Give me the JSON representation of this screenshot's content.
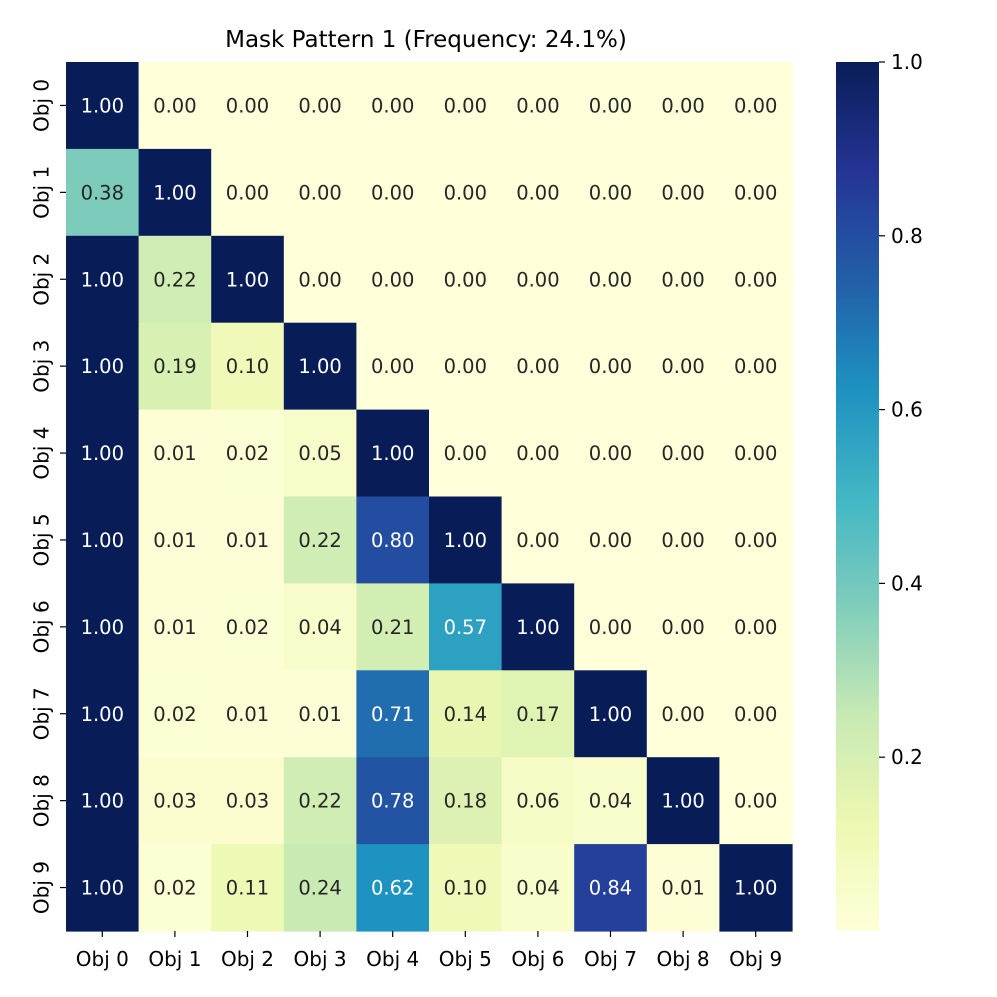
{
  "chart_data": {
    "type": "heatmap",
    "title": "Mask Pattern 1 (Frequency: 24.1%)",
    "x_categories": [
      "Obj 0",
      "Obj 1",
      "Obj 2",
      "Obj 3",
      "Obj 4",
      "Obj 5",
      "Obj 6",
      "Obj 7",
      "Obj 8",
      "Obj 9"
    ],
    "y_categories": [
      "Obj 0",
      "Obj 1",
      "Obj 2",
      "Obj 3",
      "Obj 4",
      "Obj 5",
      "Obj 6",
      "Obj 7",
      "Obj 8",
      "Obj 9"
    ],
    "values": [
      [
        1.0,
        0.0,
        0.0,
        0.0,
        0.0,
        0.0,
        0.0,
        0.0,
        0.0,
        0.0
      ],
      [
        0.38,
        1.0,
        0.0,
        0.0,
        0.0,
        0.0,
        0.0,
        0.0,
        0.0,
        0.0
      ],
      [
        1.0,
        0.22,
        1.0,
        0.0,
        0.0,
        0.0,
        0.0,
        0.0,
        0.0,
        0.0
      ],
      [
        1.0,
        0.19,
        0.1,
        1.0,
        0.0,
        0.0,
        0.0,
        0.0,
        0.0,
        0.0
      ],
      [
        1.0,
        0.01,
        0.02,
        0.05,
        1.0,
        0.0,
        0.0,
        0.0,
        0.0,
        0.0
      ],
      [
        1.0,
        0.01,
        0.01,
        0.22,
        0.8,
        1.0,
        0.0,
        0.0,
        0.0,
        0.0
      ],
      [
        1.0,
        0.01,
        0.02,
        0.04,
        0.21,
        0.57,
        1.0,
        0.0,
        0.0,
        0.0
      ],
      [
        1.0,
        0.02,
        0.01,
        0.01,
        0.71,
        0.14,
        0.17,
        1.0,
        0.0,
        0.0
      ],
      [
        1.0,
        0.03,
        0.03,
        0.22,
        0.78,
        0.18,
        0.06,
        0.04,
        1.0,
        0.0
      ],
      [
        1.0,
        0.02,
        0.11,
        0.24,
        0.62,
        0.1,
        0.04,
        0.84,
        0.01,
        1.0
      ]
    ],
    "colormap": "YlGnBu",
    "colorbar": {
      "range": [
        0,
        1.0
      ],
      "ticks": [
        0.2,
        0.4,
        0.6,
        0.8,
        1.0
      ],
      "tick_labels": [
        "0.2",
        "0.4",
        "0.6",
        "0.8",
        "1.0"
      ]
    },
    "legend": "colorbar-right",
    "grid": false,
    "colors": {
      "low": "#ffffd9",
      "high": "#081d58",
      "text_dark": "#262626",
      "text_light": "#ffffff"
    }
  }
}
